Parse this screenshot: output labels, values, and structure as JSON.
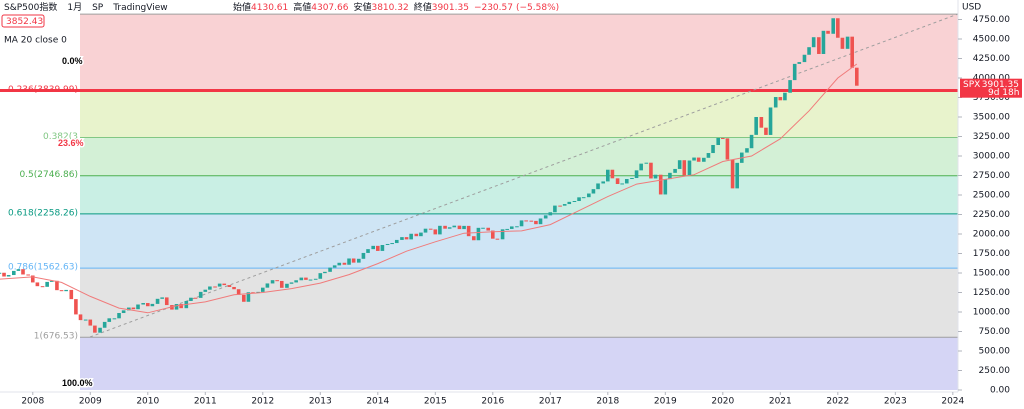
{
  "chart_data": {
    "type": "candlestick",
    "title": "S&P500指数",
    "interval": "1月",
    "exchange": "SP",
    "brand": "TradingView",
    "header_quote": [
      {
        "label": "始値",
        "value": 4130.61
      },
      {
        "label": "高値",
        "value": 4307.66
      },
      {
        "label": "安値",
        "value": 3810.32
      },
      {
        "label": "終値",
        "value": 3901.35
      }
    ],
    "change": {
      "value": -230.57,
      "label": "−230.57"
    },
    "change_pct": {
      "value": -5.58,
      "label": "(−5.58%)"
    },
    "price_label": 3852.43,
    "up_color": "#26a69a",
    "down_color": "#ef5350",
    "x": [
      2007.42,
      2007.5,
      2007.58,
      2007.67,
      2007.75,
      2007.83,
      2007.92,
      2008,
      2008.08,
      2008.17,
      2008.25,
      2008.33,
      2008.42,
      2008.5,
      2008.58,
      2008.67,
      2008.75,
      2008.83,
      2008.92,
      2009,
      2009.08,
      2009.17,
      2009.25,
      2009.33,
      2009.42,
      2009.5,
      2009.58,
      2009.67,
      2009.75,
      2009.83,
      2009.92,
      2010,
      2010.08,
      2010.17,
      2010.25,
      2010.33,
      2010.42,
      2010.5,
      2010.58,
      2010.67,
      2010.75,
      2010.83,
      2010.92,
      2011,
      2011.08,
      2011.17,
      2011.25,
      2011.33,
      2011.42,
      2011.5,
      2011.58,
      2011.67,
      2011.75,
      2011.83,
      2011.92,
      2012,
      2012.08,
      2012.17,
      2012.25,
      2012.33,
      2012.42,
      2012.5,
      2012.58,
      2012.67,
      2012.75,
      2012.83,
      2012.92,
      2013,
      2013.08,
      2013.17,
      2013.25,
      2013.33,
      2013.42,
      2013.5,
      2013.58,
      2013.67,
      2013.75,
      2013.83,
      2013.92,
      2014,
      2014.08,
      2014.17,
      2014.25,
      2014.33,
      2014.42,
      2014.5,
      2014.58,
      2014.67,
      2014.75,
      2014.83,
      2014.92,
      2015,
      2015.08,
      2015.17,
      2015.25,
      2015.33,
      2015.42,
      2015.5,
      2015.58,
      2015.67,
      2015.75,
      2015.83,
      2015.92,
      2016,
      2016.08,
      2016.17,
      2016.25,
      2016.33,
      2016.42,
      2016.5,
      2016.58,
      2016.67,
      2016.75,
      2016.83,
      2016.92,
      2017,
      2017.08,
      2017.17,
      2017.25,
      2017.33,
      2017.42,
      2017.5,
      2017.58,
      2017.67,
      2017.75,
      2017.83,
      2017.92,
      2018,
      2018.08,
      2018.17,
      2018.25,
      2018.33,
      2018.42,
      2018.5,
      2018.58,
      2018.67,
      2018.75,
      2018.83,
      2018.92,
      2019,
      2019.08,
      2019.17,
      2019.25,
      2019.33,
      2019.42,
      2019.5,
      2019.58,
      2019.67,
      2019.75,
      2019.83,
      2019.92,
      2020,
      2020.08,
      2020.17,
      2020.25,
      2020.33,
      2020.42,
      2020.5,
      2020.58,
      2020.67,
      2020.75,
      2020.83,
      2020.92,
      2021,
      2021.08,
      2021.17,
      2021.25,
      2021.33,
      2021.42,
      2021.5,
      2021.58,
      2021.67,
      2021.75,
      2021.83,
      2021.92,
      2022,
      2022.08,
      2022.17,
      2022.25,
      2022.33
    ],
    "values": [
      1503,
      1455,
      1474,
      1527,
      1549,
      1481,
      1468,
      1379,
      1331,
      1323,
      1386,
      1400,
      1280,
      1267,
      1283,
      1165,
      969,
      896,
      903,
      826,
      735,
      798,
      873,
      919,
      919,
      987,
      1021,
      1057,
      1036,
      1096,
      1115,
      1074,
      1104,
      1169,
      1187,
      1089,
      1031,
      1102,
      1049,
      1141,
      1183,
      1181,
      1258,
      1286,
      1327,
      1326,
      1364,
      1345,
      1321,
      1292,
      1219,
      1131,
      1253,
      1247,
      1258,
      1312,
      1366,
      1408,
      1398,
      1310,
      1362,
      1379,
      1407,
      1441,
      1412,
      1416,
      1426,
      1498,
      1515,
      1569,
      1598,
      1631,
      1606,
      1686,
      1633,
      1682,
      1757,
      1806,
      1848,
      1783,
      1859,
      1872,
      1884,
      1924,
      1960,
      1931,
      2003,
      1972,
      2018,
      2068,
      2059,
      1995,
      2105,
      2068,
      2086,
      2107,
      2063,
      2104,
      1972,
      1920,
      2079,
      2080,
      2044,
      1940,
      1932,
      2060,
      2065,
      2097,
      2099,
      2174,
      2171,
      2168,
      2126,
      2199,
      2239,
      2279,
      2364,
      2363,
      2384,
      2412,
      2423,
      2470,
      2472,
      2519,
      2575,
      2648,
      2674,
      2824,
      2714,
      2641,
      2648,
      2705,
      2718,
      2816,
      2902,
      2914,
      2712,
      2760,
      2507,
      2704,
      2784,
      2834,
      2946,
      2752,
      2942,
      2980,
      2926,
      2977,
      3038,
      3141,
      3231,
      3226,
      2954,
      2585,
      2912,
      3044,
      3100,
      3271,
      3500,
      3363,
      3270,
      3622,
      3756,
      3714,
      3811,
      3973,
      4181,
      4204,
      4298,
      4395,
      4523,
      4308,
      4605,
      4567,
      4766,
      4516,
      4374,
      4530,
      4132,
      3901
    ],
    "ma": {
      "name": "MA 20 close 0",
      "color": "#f07b7b",
      "x": [
        2007.42,
        2008,
        2008.5,
        2009,
        2009.5,
        2010,
        2010.5,
        2011,
        2011.5,
        2012,
        2012.5,
        2013,
        2013.5,
        2014,
        2014.5,
        2015,
        2015.5,
        2016,
        2016.5,
        2017,
        2017.5,
        2018,
        2018.5,
        2019,
        2019.5,
        2020,
        2020.5,
        2021,
        2021.5,
        2022,
        2022.33
      ],
      "values": [
        1420,
        1450,
        1380,
        1200,
        1050,
        990,
        1080,
        1130,
        1220,
        1250,
        1300,
        1370,
        1480,
        1620,
        1780,
        1900,
        2010,
        2030,
        2040,
        2120,
        2300,
        2480,
        2640,
        2700,
        2760,
        2930,
        3000,
        3220,
        3580,
        4000,
        4180
      ]
    },
    "fib_levels": [
      {
        "price": 4818.62,
        "color": "#9e9e9e"
      },
      {
        "price": 3839.99,
        "label": "0.236(3839.99)",
        "color": "#f23645",
        "fill": "#f9d2d4"
      },
      {
        "price": 3237,
        "label": "0.382(3",
        "color": "#81c784",
        "fill": "#e8f3cc"
      },
      {
        "price": 2746.86,
        "label": "0.5(2746.86)",
        "color": "#4caf50",
        "fill": "#d3f0d6"
      },
      {
        "price": 2258.26,
        "label": "0.618(2258.26)",
        "color": "#089981",
        "fill": "#c9efe4"
      },
      {
        "price": 1562.63,
        "label": "0.786(1562.63)",
        "color": "#64b5f6",
        "fill": "#cfe5f5"
      },
      {
        "price": 676.53,
        "label": "1(676.53)",
        "color": "#9e9e9e",
        "fill": "#e3e3e3"
      }
    ],
    "overlays": [
      "0.0%",
      "23.6%",
      "100.0%"
    ],
    "last_price": {
      "symbol": "SPX",
      "value": 3901.35,
      "countdown": "9d 18h"
    },
    "currency": "USD",
    "xlim": [
      2007.43,
      2024.09
    ],
    "ylim": [
      0,
      5000
    ],
    "xticks": [
      2008,
      2009,
      2010,
      2011,
      2012,
      2013,
      2014,
      2015,
      2016,
      2017,
      2018,
      2019,
      2020,
      2021,
      2022,
      2023,
      2024
    ],
    "yticks": [
      {
        "value": 0,
        "label": "0.00"
      },
      {
        "value": 250,
        "label": "250.00"
      },
      {
        "value": 500,
        "label": "500.00"
      },
      {
        "value": 750,
        "label": "750.00"
      },
      {
        "value": 1000,
        "label": "1000.00"
      },
      {
        "value": 1250,
        "label": "1250.00"
      },
      {
        "value": 1500,
        "label": "1500.00"
      },
      {
        "value": 1750,
        "label": "1750.00"
      },
      {
        "value": 2000,
        "label": "2000.00"
      },
      {
        "value": 2250,
        "label": "2250.00"
      },
      {
        "value": 2500,
        "label": "2500.00"
      },
      {
        "value": 2750,
        "label": "2750.00"
      },
      {
        "value": 3000,
        "label": "3000.00"
      },
      {
        "value": 3250,
        "label": "3250.00"
      },
      {
        "value": 3500,
        "label": "3500.00"
      },
      {
        "value": 3750,
        "label": "3750.00"
      },
      {
        "value": 4000,
        "label": "4000.00"
      },
      {
        "value": 4250,
        "label": "4250.00"
      },
      {
        "value": 4500,
        "label": "4500.00"
      },
      {
        "value": 4750,
        "label": "4750.00"
      }
    ]
  }
}
